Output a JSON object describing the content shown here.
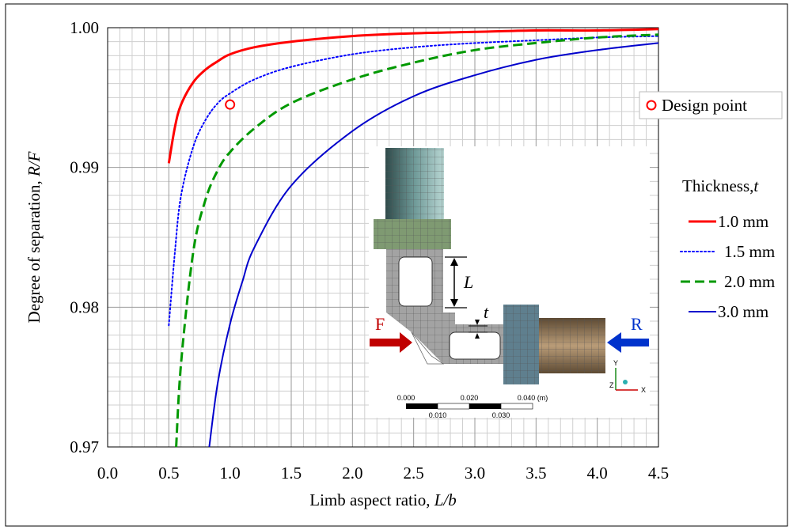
{
  "chart_data": {
    "type": "line",
    "title": "",
    "xlabel_main": "Limb aspect ratio, ",
    "xlabel_italic": "L/b",
    "ylabel_main": "Degree of separation, ",
    "ylabel_italic": "R/F",
    "xlim": [
      0.0,
      4.5
    ],
    "ylim": [
      0.97,
      1.0
    ],
    "x_ticks": [
      "0.0",
      "0.5",
      "1.0",
      "1.5",
      "2.0",
      "2.5",
      "3.0",
      "3.5",
      "4.0",
      "4.5"
    ],
    "y_ticks": [
      "0.97",
      "0.98",
      "0.99",
      "1.00"
    ],
    "grid": true,
    "legend_title_main": "Thickness,",
    "legend_title_italic": "t",
    "series": [
      {
        "name": "1.0 mm",
        "color": "#ff0000",
        "style": "solid",
        "width": 3,
        "x": [
          0.5,
          0.55,
          0.6,
          0.7,
          0.8,
          0.9,
          1.0,
          1.2,
          1.5,
          2.0,
          2.5,
          3.0,
          3.5,
          4.0,
          4.5
        ],
        "y": [
          0.9903,
          0.9929,
          0.9945,
          0.9961,
          0.997,
          0.9976,
          0.9981,
          0.9986,
          0.999,
          0.9994,
          0.9996,
          0.9997,
          0.9998,
          0.9998,
          0.9999
        ]
      },
      {
        "name": "1.5 mm",
        "color": "#0000ff",
        "style": "dotted",
        "width": 2,
        "x": [
          0.5,
          0.55,
          0.6,
          0.7,
          0.8,
          0.9,
          1.0,
          1.2,
          1.5,
          2.0,
          2.5,
          3.0,
          3.5,
          4.0,
          4.5
        ],
        "y": [
          0.9787,
          0.984,
          0.988,
          0.9915,
          0.9934,
          0.9946,
          0.9953,
          0.9963,
          0.9972,
          0.9981,
          0.9986,
          0.9989,
          0.9991,
          0.9993,
          0.9994
        ]
      },
      {
        "name": "2.0 mm",
        "color": "#009900",
        "style": "dashed",
        "width": 3,
        "x": [
          0.56,
          0.6,
          0.7,
          0.8,
          0.9,
          1.0,
          1.2,
          1.5,
          2.0,
          2.5,
          3.0,
          3.5,
          4.0,
          4.5
        ],
        "y": [
          0.97,
          0.976,
          0.984,
          0.9877,
          0.9898,
          0.9911,
          0.9928,
          0.9946,
          0.9963,
          0.9975,
          0.9984,
          0.9989,
          0.9993,
          0.9995
        ]
      },
      {
        "name": "3.0 mm",
        "color": "#0000cc",
        "style": "solid",
        "width": 2,
        "x": [
          0.83,
          0.9,
          1.0,
          1.1,
          1.2,
          1.5,
          2.0,
          2.5,
          3.0,
          3.5,
          4.0,
          4.5
        ],
        "y": [
          0.97,
          0.9746,
          0.9788,
          0.9818,
          0.9843,
          0.9887,
          0.9926,
          0.9951,
          0.9966,
          0.9977,
          0.9984,
          0.9989
        ]
      }
    ],
    "annotations": [
      {
        "label": "Design point",
        "x": 1.0,
        "y": 0.9945,
        "marker": "open-circle",
        "color": "#ff0000"
      }
    ],
    "inset": {
      "label_F": "F",
      "label_R": "R",
      "label_L": "L",
      "label_t": "t",
      "scale_top": [
        "0.000",
        "0.020",
        "0.040 (m)"
      ],
      "scale_bottom": [
        "0.010",
        "0.030"
      ],
      "axis_y": "Y",
      "axis_z": "Z",
      "axis_x": "X"
    }
  }
}
